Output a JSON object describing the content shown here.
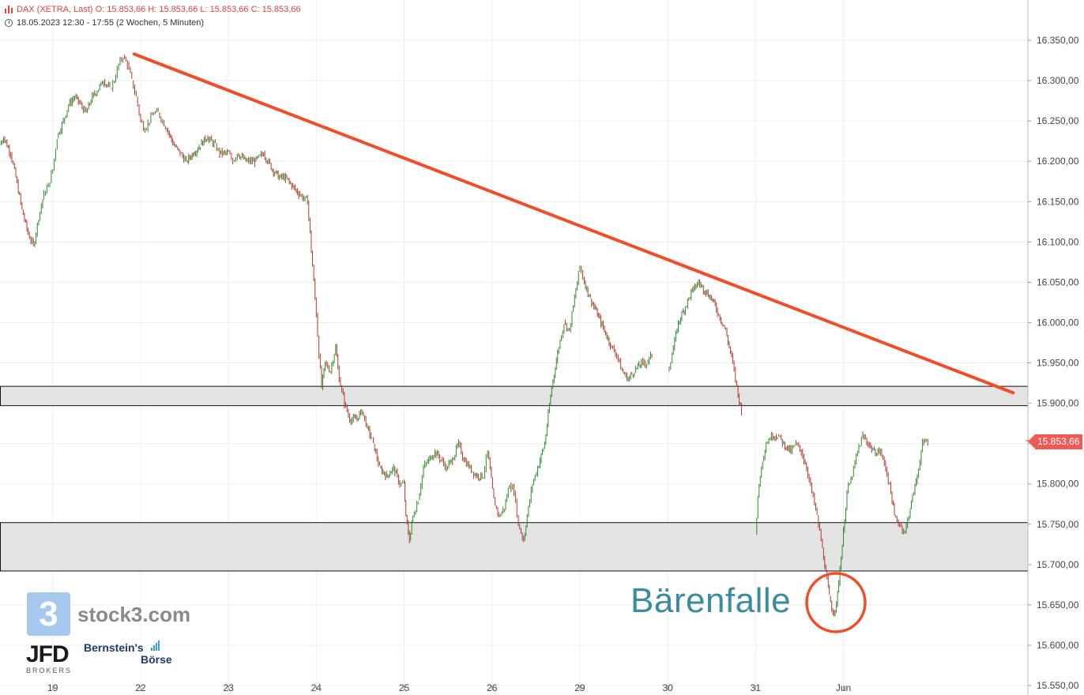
{
  "header": {
    "instrument_line": "DAX (XETRA, Last)  O: 15.853,66  H: 15.853,66  L: 15.853,66  C: 15.853,66",
    "period_line": "18.05.2023 12:30 - 17:55   (2 Wochen, 5 Minuten)"
  },
  "current_price_label": "15.853,66",
  "annotation_label": "Bärenfalle",
  "branding": {
    "stock3_mark": "3",
    "stock3_text": "stock3.com",
    "jfd_text": "JFD",
    "jfd_sub": "BROKERS",
    "bernstein_line1": "Bernstein's",
    "bernstein_line2": "Börse"
  },
  "colors": {
    "up_candle": "#2e8b2e",
    "down_candle": "#b03a2e",
    "trendline": "#f04e2b",
    "zone_fill": "#e3e3e3",
    "price_tag": "#f05a55",
    "annotation": "#3a8b9c"
  },
  "chart_data": {
    "type": "line",
    "title": "",
    "instrument": "DAX (XETRA, Last)",
    "interval": "5 Minuten",
    "xlabel": "",
    "ylabel": "",
    "ylim": [
      15550,
      16400
    ],
    "y_ticks": [
      15550,
      15600,
      15650,
      15700,
      15750,
      15800,
      15850,
      15900,
      15950,
      16000,
      16050,
      16100,
      16150,
      16200,
      16250,
      16300,
      16350
    ],
    "y_tick_labels": [
      "15.550,00",
      "15.600,00",
      "15.650,00",
      "15.700,00",
      "15.750,00",
      "15.800,00",
      "15.850,00",
      "15.900,00",
      "15.950,00",
      "16.000,00",
      "16.050,00",
      "16.100,00",
      "16.150,00",
      "16.200,00",
      "16.250,00",
      "16.300,00",
      "16.350,00"
    ],
    "x_ticks": [
      "19",
      "22",
      "23",
      "24",
      "25",
      "26",
      "29",
      "30",
      "31",
      "Jun"
    ],
    "x_tick_index": [
      0.6,
      1.6,
      2.6,
      3.6,
      4.6,
      5.6,
      6.6,
      7.6,
      8.6,
      9.6
    ],
    "grid": true,
    "series": [
      {
        "type": "candlestick-approx",
        "points": [
          [
            0.0,
            16220
          ],
          [
            0.04,
            16230
          ],
          [
            0.12,
            16210
          ],
          [
            0.18,
            16180
          ],
          [
            0.25,
            16140
          ],
          [
            0.32,
            16110
          ],
          [
            0.38,
            16095
          ],
          [
            0.44,
            16130
          ],
          [
            0.5,
            16160
          ],
          [
            0.55,
            16170
          ],
          [
            0.6,
            16190
          ],
          [
            0.65,
            16230
          ],
          [
            0.72,
            16250
          ],
          [
            0.78,
            16270
          ],
          [
            0.85,
            16280
          ],
          [
            0.92,
            16270
          ],
          [
            0.98,
            16260
          ],
          [
            1.05,
            16280
          ],
          [
            1.12,
            16290
          ],
          [
            1.18,
            16300
          ],
          [
            1.25,
            16290
          ],
          [
            1.3,
            16300
          ],
          [
            1.35,
            16320
          ],
          [
            1.4,
            16330
          ],
          [
            1.45,
            16320
          ],
          [
            1.5,
            16300
          ],
          [
            1.55,
            16280
          ],
          [
            1.6,
            16250
          ],
          [
            1.65,
            16240
          ],
          [
            1.7,
            16250
          ],
          [
            1.75,
            16260
          ],
          [
            1.8,
            16260
          ],
          [
            1.85,
            16250
          ],
          [
            1.9,
            16240
          ],
          [
            1.98,
            16220
          ],
          [
            2.05,
            16210
          ],
          [
            2.12,
            16200
          ],
          [
            2.2,
            16210
          ],
          [
            2.28,
            16220
          ],
          [
            2.35,
            16230
          ],
          [
            2.45,
            16220
          ],
          [
            2.5,
            16210
          ],
          [
            2.6,
            16210
          ],
          [
            2.65,
            16200
          ],
          [
            2.7,
            16210
          ],
          [
            2.8,
            16200
          ],
          [
            2.9,
            16200
          ],
          [
            3.0,
            16210
          ],
          [
            3.1,
            16190
          ],
          [
            3.18,
            16180
          ],
          [
            3.25,
            16180
          ],
          [
            3.32,
            16170
          ],
          [
            3.4,
            16160
          ],
          [
            3.5,
            16150
          ],
          [
            3.6,
            16010
          ],
          [
            3.63,
            15960
          ],
          [
            3.66,
            15920
          ],
          [
            3.7,
            15950
          ],
          [
            3.76,
            15940
          ],
          [
            3.82,
            15970
          ],
          [
            3.86,
            15930
          ],
          [
            3.92,
            15900
          ],
          [
            3.98,
            15880
          ],
          [
            4.05,
            15880
          ],
          [
            4.12,
            15890
          ],
          [
            4.18,
            15870
          ],
          [
            4.25,
            15850
          ],
          [
            4.32,
            15820
          ],
          [
            4.4,
            15810
          ],
          [
            4.48,
            15820
          ],
          [
            4.55,
            15800
          ],
          [
            4.6,
            15800
          ],
          [
            4.62,
            15760
          ],
          [
            4.66,
            15730
          ],
          [
            4.7,
            15760
          ],
          [
            4.76,
            15780
          ],
          [
            4.82,
            15820
          ],
          [
            4.88,
            15830
          ],
          [
            4.95,
            15840
          ],
          [
            5.02,
            15830
          ],
          [
            5.08,
            15820
          ],
          [
            5.15,
            15830
          ],
          [
            5.22,
            15850
          ],
          [
            5.28,
            15830
          ],
          [
            5.35,
            15820
          ],
          [
            5.42,
            15810
          ],
          [
            5.5,
            15810
          ],
          [
            5.55,
            15840
          ],
          [
            5.62,
            15780
          ],
          [
            5.68,
            15760
          ],
          [
            5.74,
            15770
          ],
          [
            5.8,
            15800
          ],
          [
            5.85,
            15790
          ],
          [
            5.9,
            15750
          ],
          [
            5.96,
            15730
          ],
          [
            6.0,
            15760
          ],
          [
            6.06,
            15800
          ],
          [
            6.12,
            15820
          ],
          [
            6.2,
            15850
          ],
          [
            6.28,
            15920
          ],
          [
            6.36,
            15970
          ],
          [
            6.42,
            16000
          ],
          [
            6.48,
            15990
          ],
          [
            6.6,
            16070
          ],
          [
            6.65,
            16050
          ],
          [
            6.72,
            16030
          ],
          [
            6.8,
            16010
          ],
          [
            6.88,
            15990
          ],
          [
            6.96,
            15970
          ],
          [
            7.02,
            15960
          ],
          [
            7.08,
            15940
          ],
          [
            7.15,
            15930
          ],
          [
            7.22,
            15940
          ],
          [
            7.3,
            15950
          ],
          [
            7.36,
            15950
          ],
          [
            7.42,
            15960
          ],
          [
            7.6,
            15940
          ],
          [
            7.65,
            15960
          ],
          [
            7.72,
            16000
          ],
          [
            7.8,
            16020
          ],
          [
            7.88,
            16040
          ],
          [
            7.95,
            16050
          ],
          [
            8.02,
            16040
          ],
          [
            8.1,
            16030
          ],
          [
            8.18,
            16010
          ],
          [
            8.26,
            15990
          ],
          [
            8.34,
            15950
          ],
          [
            8.4,
            15910
          ],
          [
            8.44,
            15890
          ],
          [
            8.6,
            15740
          ],
          [
            8.64,
            15800
          ],
          [
            8.68,
            15830
          ],
          [
            8.72,
            15850
          ],
          [
            8.78,
            15860
          ],
          [
            8.85,
            15860
          ],
          [
            8.92,
            15850
          ],
          [
            9.0,
            15840
          ],
          [
            9.06,
            15850
          ],
          [
            9.12,
            15840
          ],
          [
            9.18,
            15820
          ],
          [
            9.24,
            15790
          ],
          [
            9.3,
            15760
          ],
          [
            9.36,
            15720
          ],
          [
            9.4,
            15690
          ],
          [
            9.44,
            15660
          ],
          [
            9.48,
            15640
          ],
          [
            9.52,
            15650
          ],
          [
            9.6,
            15740
          ],
          [
            9.64,
            15790
          ],
          [
            9.7,
            15810
          ],
          [
            9.76,
            15840
          ],
          [
            9.82,
            15860
          ],
          [
            9.88,
            15850
          ],
          [
            9.95,
            15840
          ],
          [
            10.02,
            15840
          ],
          [
            10.08,
            15820
          ],
          [
            10.14,
            15790
          ],
          [
            10.18,
            15760
          ],
          [
            10.24,
            15750
          ],
          [
            10.3,
            15740
          ],
          [
            10.36,
            15770
          ],
          [
            10.44,
            15810
          ],
          [
            10.5,
            15850
          ],
          [
            10.56,
            15854
          ]
        ]
      }
    ],
    "trendline": {
      "from": [
        1.4,
        16333
      ],
      "to": [
        11.55,
        15913
      ]
    },
    "zones": [
      {
        "from": 15897,
        "to": 15921
      },
      {
        "from": 15692,
        "to": 15752
      }
    ],
    "last_price": 15853.66
  }
}
